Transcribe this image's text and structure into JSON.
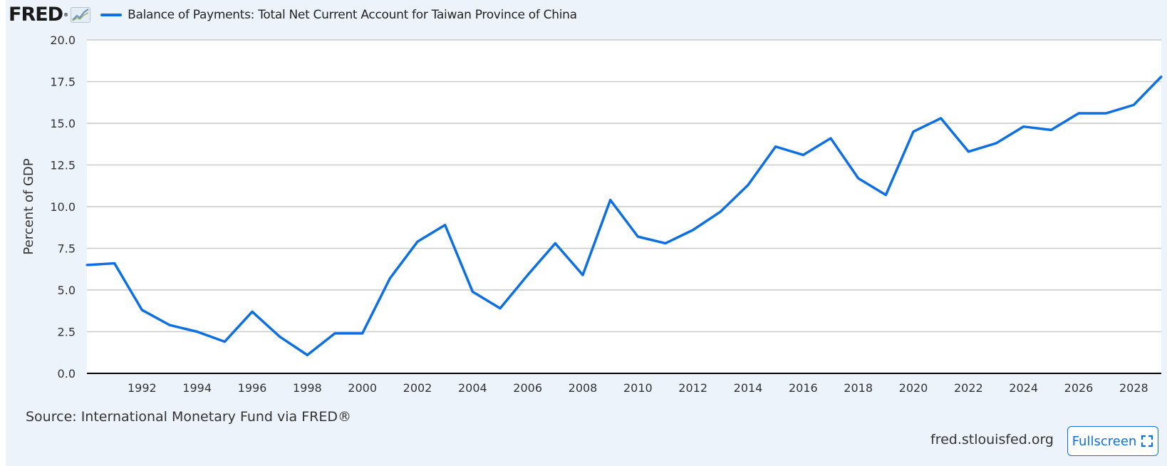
{
  "logo": {
    "text": "FRED",
    "reg": "®",
    "icon": "line-chart-icon"
  },
  "legend": {
    "label": "Balance of Payments: Total Net Current Account for Taiwan Province of China",
    "color": "#0c6fe3"
  },
  "source": "Source: International Monetary Fund via FRED®",
  "site": "fred.stlouisfed.org",
  "fullscreen": {
    "label": "Fullscreen",
    "icon": "fullscreen-icon"
  },
  "chart_data": {
    "type": "line",
    "title": "",
    "xlabel": "",
    "ylabel": "Percent of GDP",
    "ylim": [
      0,
      20
    ],
    "xlim": [
      1990,
      2029
    ],
    "yticks": [
      "0.0",
      "2.5",
      "5.0",
      "7.5",
      "10.0",
      "12.5",
      "15.0",
      "17.5",
      "20.0"
    ],
    "xticks": [
      "1992",
      "1994",
      "1996",
      "1998",
      "2000",
      "2002",
      "2004",
      "2006",
      "2008",
      "2010",
      "2012",
      "2014",
      "2016",
      "2018",
      "2020",
      "2022",
      "2024",
      "2026",
      "2028"
    ],
    "grid": true,
    "legend_position": "top-left",
    "series": [
      {
        "color": "#0c6fe3",
        "x": [
          1990,
          1991,
          1992,
          1993,
          1994,
          1995,
          1996,
          1997,
          1998,
          1999,
          2000,
          2001,
          2002,
          2003,
          2004,
          2005,
          2006,
          2007,
          2008,
          2009,
          2010,
          2011,
          2012,
          2013,
          2014,
          2015,
          2016,
          2017,
          2018,
          2019,
          2020,
          2021,
          2022,
          2023,
          2024,
          2025,
          2026,
          2027,
          2028,
          2029
        ],
        "values": [
          6.5,
          6.6,
          3.8,
          2.9,
          2.5,
          1.9,
          3.7,
          2.2,
          1.1,
          2.4,
          2.4,
          5.7,
          7.9,
          8.9,
          4.9,
          3.9,
          5.9,
          7.8,
          5.9,
          10.4,
          8.2,
          7.8,
          8.6,
          9.7,
          11.3,
          13.6,
          13.1,
          14.1,
          11.7,
          10.7,
          14.5,
          15.3,
          13.3,
          13.8,
          14.8,
          14.6,
          15.6,
          15.6,
          16.1,
          17.8
        ]
      }
    ]
  }
}
